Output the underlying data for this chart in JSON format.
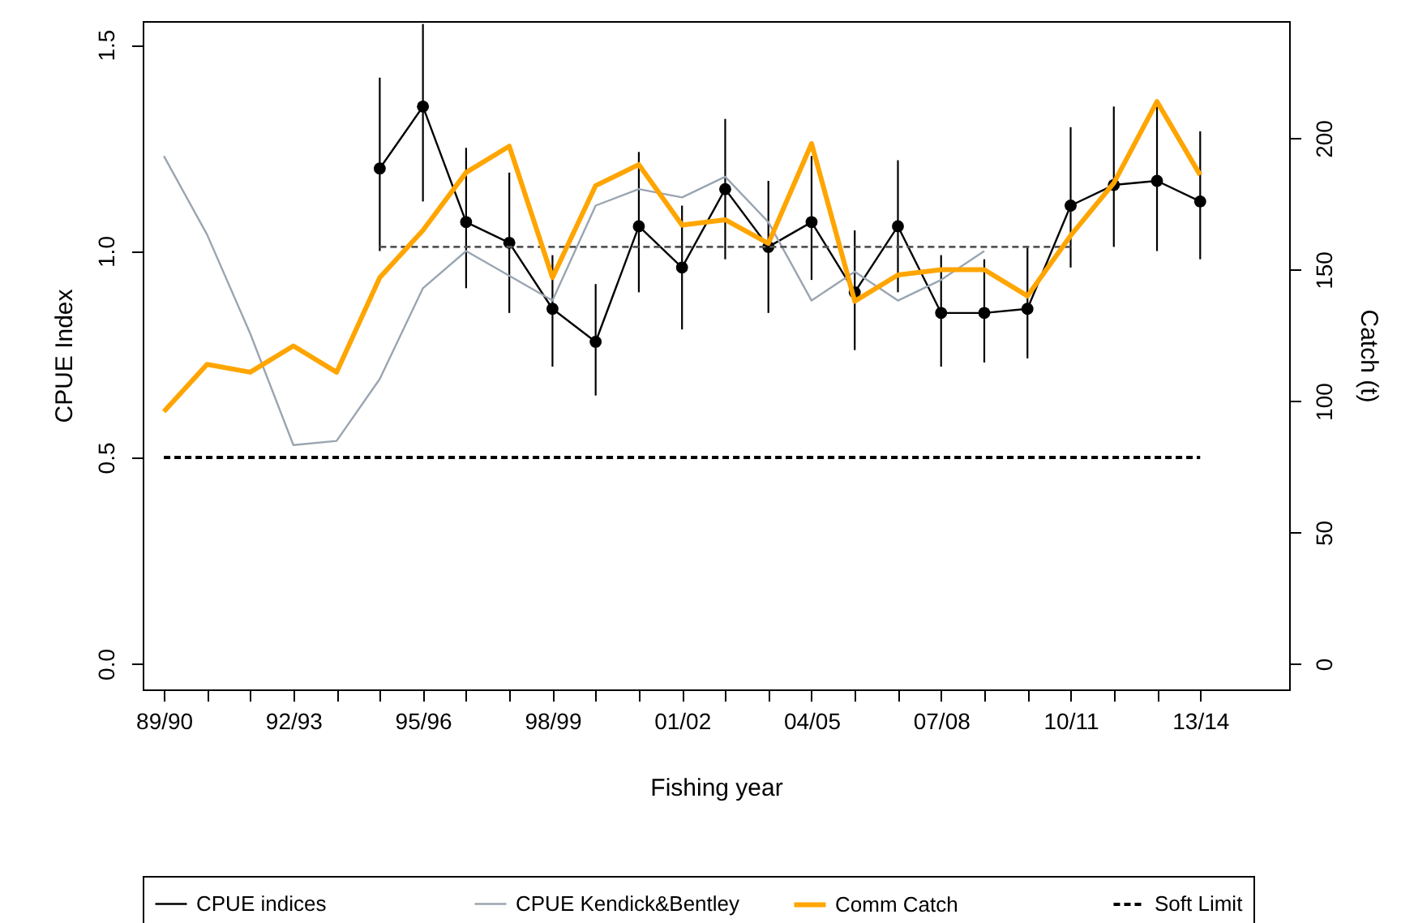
{
  "chart_data": {
    "type": "line",
    "xlabel": "Fishing year",
    "ylabel": "CPUE Index",
    "y2label": "Catch (t)",
    "legend": "bottom",
    "marker": "none",
    "categories": [
      "89/90",
      null,
      null,
      "92/93",
      null,
      null,
      "95/96",
      null,
      null,
      "98/99",
      null,
      null,
      "01/02",
      null,
      null,
      "04/05",
      null,
      null,
      "07/08",
      null,
      null,
      "10/11",
      null,
      null,
      "13/14"
    ],
    "ylim": [
      -0.062,
      1.557
    ],
    "yticks": [
      {
        "value": 0,
        "label": "0.0"
      },
      0.5,
      {
        "value": 1,
        "label": "1.0"
      },
      1.5
    ],
    "y2lim": [
      -9.7,
      244.6
    ],
    "y2ticks": [
      0,
      50,
      100,
      150,
      200
    ],
    "series": [
      {
        "name": "CPUE indices",
        "color": "#000000",
        "marker": "circle",
        "line_style": "solid",
        "values": [
          null,
          null,
          null,
          null,
          null,
          1.2,
          1.35,
          1.07,
          1.02,
          0.86,
          0.78,
          1.06,
          0.96,
          1.15,
          1.01,
          1.07,
          0.9,
          1.06,
          0.85,
          0.85,
          0.86,
          1.11,
          1.16,
          1.17,
          1.12
        ],
        "errors": [
          null,
          null,
          null,
          null,
          null,
          [
            1.0,
            1.42
          ],
          [
            1.12,
            1.55
          ],
          [
            0.91,
            1.25
          ],
          [
            0.85,
            1.19
          ],
          [
            0.72,
            0.99
          ],
          [
            0.65,
            0.92
          ],
          [
            0.9,
            1.24
          ],
          [
            0.81,
            1.11
          ],
          [
            0.98,
            1.32
          ],
          [
            0.85,
            1.17
          ],
          [
            0.93,
            1.23
          ],
          [
            0.76,
            1.05
          ],
          [
            0.9,
            1.22
          ],
          [
            0.72,
            0.99
          ],
          [
            0.73,
            0.98
          ],
          [
            0.74,
            1.01
          ],
          [
            0.96,
            1.3
          ],
          [
            1.01,
            1.35
          ],
          [
            1.0,
            1.35
          ],
          [
            0.98,
            1.29
          ]
        ]
      },
      {
        "name": "CPUE Kendick&Bentley",
        "color": "#9aa5b1",
        "line_style": "solid",
        "values": [
          1.23,
          1.04,
          0.8,
          0.53,
          0.54,
          0.69,
          0.91,
          1.0,
          0.94,
          0.88,
          1.11,
          1.15,
          1.13,
          1.18,
          1.07,
          0.88,
          0.95,
          0.88,
          0.93,
          1.0,
          null,
          null,
          null,
          null,
          null
        ]
      },
      {
        "name": "Comm Catch",
        "color": "#ffa500",
        "axis": "y2",
        "line_style": "solid",
        "values": [
          96,
          114,
          111,
          121,
          111,
          147,
          165,
          187,
          197,
          147,
          182,
          190,
          167,
          169,
          160,
          198,
          138,
          148,
          150,
          150,
          140,
          163,
          183,
          214,
          186
        ]
      },
      {
        "name": "Soft Limit",
        "color": "#000000",
        "line_style": "dashed",
        "values": [
          0.5,
          0.5,
          0.5,
          0.5,
          0.5,
          0.5,
          0.5,
          0.5,
          0.5,
          0.5,
          0.5,
          0.5,
          0.5,
          0.5,
          0.5,
          0.5,
          0.5,
          0.5,
          0.5,
          0.5,
          0.5,
          0.5,
          0.5,
          0.5,
          0.5
        ]
      },
      {
        "color": "#555555",
        "line_style": "dashed",
        "values": [
          null,
          null,
          null,
          null,
          null,
          1.01,
          1.01,
          1.01,
          1.01,
          1.01,
          1.01,
          1.01,
          1.01,
          1.01,
          1.01,
          1.01,
          1.01,
          1.01,
          1.01,
          1.01,
          1.01,
          1.01,
          null,
          null,
          null
        ]
      }
    ]
  }
}
